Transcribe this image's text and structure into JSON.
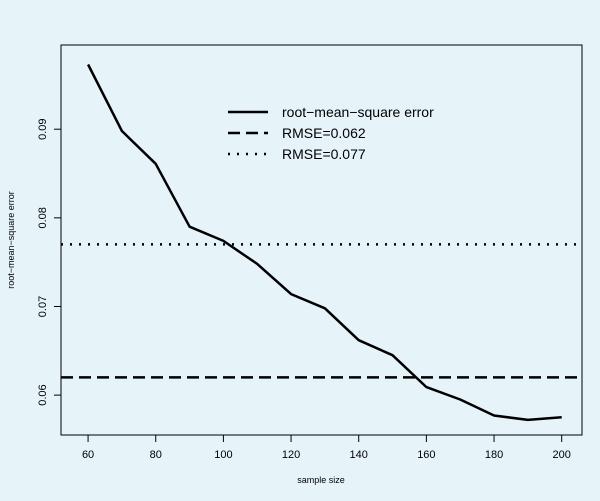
{
  "chart_data": {
    "type": "line",
    "xlabel": "sample size",
    "ylabel": "root−mean−square error",
    "xlim": [
      52,
      206
    ],
    "ylim": [
      0.0555,
      0.0995
    ],
    "x_ticks": [
      60,
      80,
      100,
      120,
      140,
      160,
      180,
      200
    ],
    "y_ticks": [
      0.06,
      0.07,
      0.08,
      0.09
    ],
    "x_tick_labels": [
      "60",
      "80",
      "100",
      "120",
      "140",
      "160",
      "180",
      "200"
    ],
    "y_tick_labels": [
      "0.06",
      "0.07",
      "0.08",
      "0.09"
    ],
    "grid": false,
    "legend_position": "top-center",
    "series": [
      {
        "name": "root−mean−square error",
        "style": "solid",
        "x": [
          60,
          70,
          80,
          90,
          100,
          110,
          120,
          130,
          140,
          150,
          160,
          170,
          180,
          190,
          200
        ],
        "y": [
          0.0973,
          0.0898,
          0.0861,
          0.079,
          0.0774,
          0.0748,
          0.0714,
          0.0698,
          0.0662,
          0.0645,
          0.0609,
          0.0595,
          0.0577,
          0.0572,
          0.0575
        ]
      },
      {
        "name": "RMSE=0.062",
        "style": "dashed",
        "hline": 0.062
      },
      {
        "name": "RMSE=0.077",
        "style": "dotted",
        "hline": 0.077
      }
    ]
  }
}
